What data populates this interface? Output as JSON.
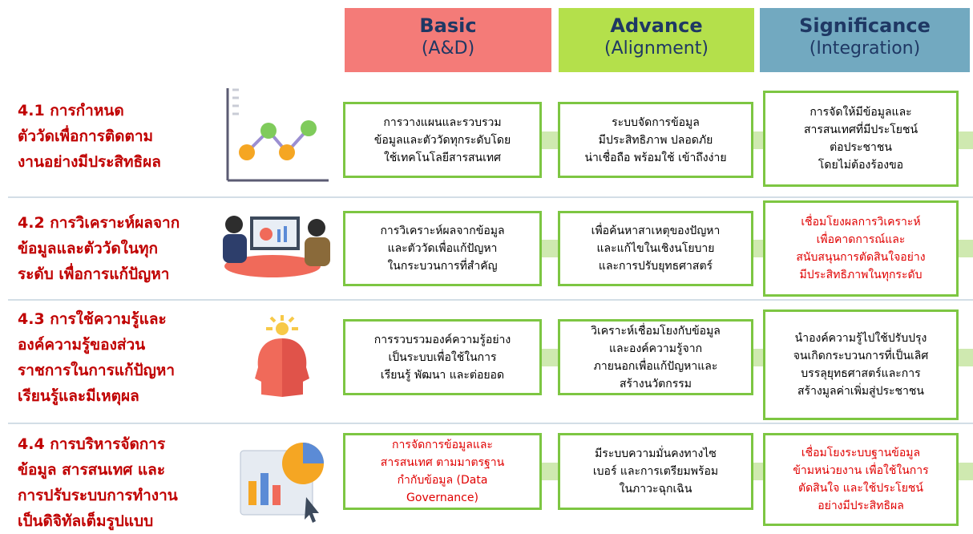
{
  "header": {
    "columns": [
      {
        "title": "Basic",
        "subtitle": "(A&D)",
        "color": "#f47b78"
      },
      {
        "title": "Advance",
        "subtitle": "(Alignment)",
        "color": "#b4e04b"
      },
      {
        "title": "Significance",
        "subtitle": "(Integration)",
        "color": "#72a9c0"
      }
    ]
  },
  "rows": [
    {
      "label": "4.1 การกำหนด\nตัววัดเพื่อการติดตาม\nงานอย่างมีประสิทธิผล",
      "cells": [
        {
          "text": "การวางแผนและรวบรวม\nข้อมูลและตัววัดทุกระดับโดย\nใช้เทคโนโลยีสารสนเทศ",
          "highlight": false
        },
        {
          "text": "ระบบจัดการข้อมูล\nมีประสิทธิภาพ ปลอดภัย\nน่าเชื่อถือ พร้อมใช้ เข้าถึงง่าย",
          "highlight": false
        },
        {
          "text": "การจัดให้มีข้อมูลและ\nสารสนเทศที่มีประโยชน์\nต่อประชาชน\nโดยไม่ต้องร้องขอ",
          "highlight": false
        }
      ]
    },
    {
      "label": "4.2 การวิเคราะห์ผลจาก\nข้อมูลและตัววัดในทุก\nระดับ เพื่อการแก้ปัญหา",
      "cells": [
        {
          "text": "การวิเคราะห์ผลจากข้อมูล\nและตัววัดเพื่อแก้ปัญหา\nในกระบวนการที่สำคัญ",
          "highlight": false
        },
        {
          "text": "เพื่อค้นหาสาเหตุของปัญหา\nและแก้ไขในเชิงนโยบาย\nและการปรับยุทธศาสตร์",
          "highlight": false
        },
        {
          "text": "เชื่อมโยงผลการวิเคราะห์\nเพื่อคาดการณ์และ\nสนับสนุนการตัดสินใจอย่าง\nมีประสิทธิภาพในทุกระดับ",
          "highlight": true
        }
      ]
    },
    {
      "label": "4.3 การใช้ความรู้และ\nองค์ความรู้ของส่วน\nราชการในการแก้ปัญหา\nเรียนรู้และมีเหตุผล",
      "cells": [
        {
          "text": "การรวบรวมองค์ความรู้อย่าง\nเป็นระบบเพื่อใช้ในการ\nเรียนรู้ พัฒนา และต่อยอด",
          "highlight": false
        },
        {
          "text": "วิเคราะห์เชื่อมโยงกับข้อมูล\nและองค์ความรู้จาก\nภายนอกเพื่อแก้ปัญหาและ\nสร้างนวัตกรรม",
          "highlight": false
        },
        {
          "text": "นำองค์ความรู้ไปใช้ปรับปรุง\nจนเกิดกระบวนการที่เป็นเลิศ\nบรรลุยุทธศาสตร์และการ\nสร้างมูลค่าเพิ่มสู่ประชาชน",
          "highlight": false
        }
      ]
    },
    {
      "label": "4.4 การบริหารจัดการ\nข้อมูล สารสนเทศ และ\nการปรับระบบการทำงาน\nเป็นดิจิทัลเต็มรูปแบบ",
      "cells": [
        {
          "text": "การจัดการข้อมูลและ\nสารสนเทศ ตามมาตรฐาน\nกำกับข้อมูล (Data\nGovernance)",
          "highlight": true
        },
        {
          "text": "มีระบบความมั่นคงทางไซ\nเบอร์ และการเตรียมพร้อม\nในภาวะฉุกเฉิน",
          "highlight": false
        },
        {
          "text": "เชื่อมโยงระบบฐานข้อมูล\nข้ามหน่วยงาน เพื่อใช้ในการ\nตัดสินใจ และใช้ประโยชน์\nอย่างมีประสิทธิผล",
          "highlight": true
        }
      ]
    }
  ]
}
